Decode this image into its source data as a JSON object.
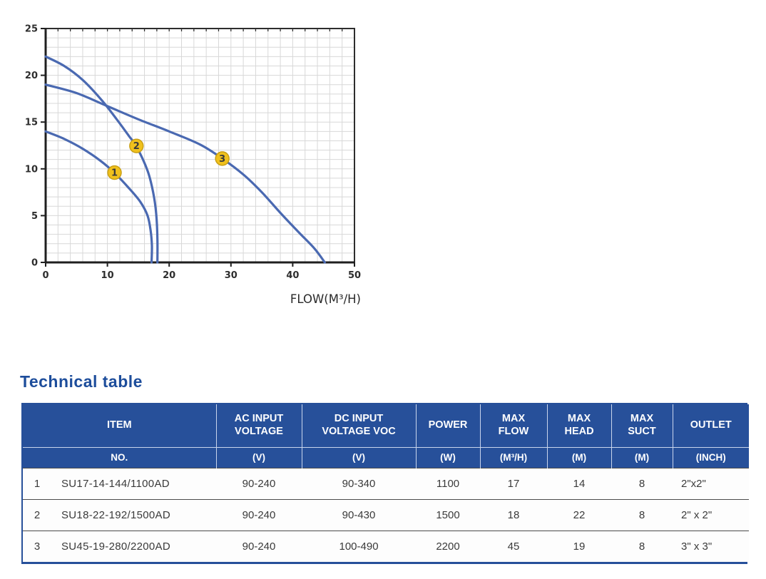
{
  "colors": {
    "navy": "#27509a",
    "heading": "#1d4d9b",
    "body_text": "#3a3a3a",
    "row_divider": "#4a4a4a",
    "header_divider": "#c9d5ec",
    "curve": "#4a69b1",
    "marker": "#f0c11d",
    "marker_border": "#c79d12",
    "grid": "#d8d8d8",
    "axis": "#2d2d2d"
  },
  "chart_data": {
    "type": "line",
    "title": "",
    "xlabel": "FLOW(M³/H)",
    "ylabel": "",
    "xlim": [
      0,
      50
    ],
    "ylim": [
      0,
      25
    ],
    "x_ticks": [
      0,
      10,
      20,
      30,
      40,
      50
    ],
    "y_ticks": [
      0,
      5,
      10,
      15,
      20,
      25
    ],
    "grid": {
      "x_minor_step": 2,
      "y_minor_step": 1
    },
    "legend": "none",
    "series": [
      {
        "name": "1",
        "max_head": 14,
        "max_flow": 17,
        "points": [
          [
            0,
            14
          ],
          [
            3,
            13.2
          ],
          [
            6,
            12.15
          ],
          [
            9,
            10.8
          ],
          [
            11.1,
            9.6
          ],
          [
            13.4,
            8.0
          ],
          [
            15.3,
            6.5
          ],
          [
            16.5,
            5.0
          ],
          [
            17.0,
            3.4
          ],
          [
            17.2,
            1.8
          ],
          [
            17.15,
            0
          ]
        ]
      },
      {
        "name": "2",
        "max_head": 22,
        "max_flow": 18,
        "points": [
          [
            0,
            22
          ],
          [
            3,
            21
          ],
          [
            6,
            19.5
          ],
          [
            9,
            17.4
          ],
          [
            11.5,
            15.3
          ],
          [
            13.5,
            13.5
          ],
          [
            14.7,
            12.4
          ],
          [
            16.5,
            9.8
          ],
          [
            17.4,
            7.5
          ],
          [
            17.9,
            5.2
          ],
          [
            18.1,
            2.5
          ],
          [
            18.1,
            0
          ]
        ]
      },
      {
        "name": "3",
        "max_head": 19,
        "max_flow": 45,
        "points": [
          [
            0,
            19
          ],
          [
            5,
            18.1
          ],
          [
            10,
            16.7
          ],
          [
            15,
            15.3
          ],
          [
            20,
            14.0
          ],
          [
            25,
            12.6
          ],
          [
            28.6,
            11.1
          ],
          [
            32,
            9.4
          ],
          [
            35,
            7.5
          ],
          [
            38,
            5.3
          ],
          [
            41,
            3.2
          ],
          [
            43.5,
            1.5
          ],
          [
            45.2,
            0
          ]
        ]
      }
    ],
    "markers": [
      {
        "label": "1",
        "x": 11.15,
        "y": 9.6
      },
      {
        "label": "2",
        "x": 14.7,
        "y": 12.45
      },
      {
        "label": "3",
        "x": 28.6,
        "y": 11.1
      }
    ]
  },
  "section": {
    "heading": "Technical table"
  },
  "table": {
    "header_row1": [
      "ITEM",
      "AC INPUT\nVOLTAGE",
      "DC INPUT\nVOLTAGE VOC",
      "POWER",
      "MAX\nFLOW",
      "MAX\nHEAD",
      "MAX\nSUCT",
      "OUTLET"
    ],
    "header_row2": [
      "NO.",
      "(V)",
      "(V)",
      "(W)",
      "(M³/H)",
      "(M)",
      "(M)",
      "(INCH)"
    ],
    "rows": [
      [
        "1",
        "SU17-14-144/1100AD",
        "90-240",
        "90-340",
        "1100",
        "17",
        "14",
        "8",
        "2\"x2\""
      ],
      [
        "2",
        "SU18-22-192/1500AD",
        "90-240",
        "90-430",
        "1500",
        "18",
        "22",
        "8",
        "2\" x 2\""
      ],
      [
        "3",
        "SU45-19-280/2200AD",
        "90-240",
        "100-490",
        "2200",
        "45",
        "19",
        "8",
        "3\" x 3\""
      ]
    ]
  }
}
